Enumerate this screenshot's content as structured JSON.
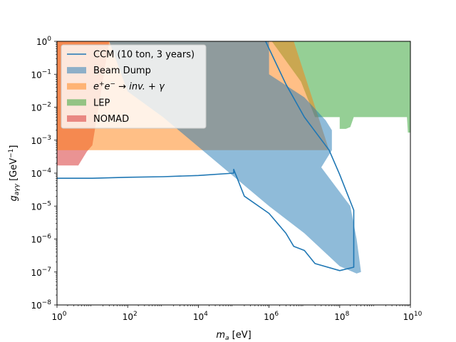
{
  "chart_data": {
    "type": "area",
    "xlabel": "m_a [eV]",
    "ylabel": "g_aγγ [GeV⁻¹]",
    "xscale": "log",
    "yscale": "log",
    "xlim": [
      1,
      10000000000
    ],
    "ylim": [
      1e-08,
      1
    ],
    "x_ticks": [
      {
        "value": 1,
        "base": "10",
        "exp": "0"
      },
      {
        "value": 100,
        "base": "10",
        "exp": "2"
      },
      {
        "value": 10000,
        "base": "10",
        "exp": "4"
      },
      {
        "value": 1000000,
        "base": "10",
        "exp": "6"
      },
      {
        "value": 100000000,
        "base": "10",
        "exp": "8"
      },
      {
        "value": 10000000000,
        "base": "10",
        "exp": "10"
      }
    ],
    "y_ticks": [
      {
        "value": 1e-08,
        "base": "10",
        "exp": "−8"
      },
      {
        "value": 1e-07,
        "base": "10",
        "exp": "−7"
      },
      {
        "value": 1e-06,
        "base": "10",
        "exp": "−6"
      },
      {
        "value": 1e-05,
        "base": "10",
        "exp": "−5"
      },
      {
        "value": 0.0001,
        "base": "10",
        "exp": "−4"
      },
      {
        "value": 0.001,
        "base": "10",
        "exp": "−3"
      },
      {
        "value": 0.01,
        "base": "10",
        "exp": "−2"
      },
      {
        "value": 0.1,
        "base": "10",
        "exp": "−1"
      },
      {
        "value": 1,
        "base": "10",
        "exp": "0"
      }
    ],
    "legend_position": "top-left",
    "series": [
      {
        "name": "LEP",
        "style": "fill",
        "color": "#2ca02c",
        "opacity": 0.5,
        "points": [
          [
            1200000,
            1
          ],
          [
            10000000000,
            1
          ],
          [
            10000000000,
            0.0017
          ],
          [
            8500000000,
            0.0017
          ],
          [
            8000000000,
            0.005
          ],
          [
            250000000,
            0.005
          ],
          [
            200000000,
            0.0025
          ],
          [
            150000000,
            0.0022
          ],
          [
            100000000,
            0.0022
          ],
          [
            100000000,
            0.005
          ],
          [
            20000000,
            0.005
          ],
          [
            8000000,
            0.06
          ],
          [
            1200000,
            1
          ]
        ]
      },
      {
        "name": "NOMAD",
        "style": "fill",
        "color": "#d62728",
        "opacity": 0.5,
        "points": [
          [
            1,
            1
          ],
          [
            30,
            1
          ],
          [
            15,
            0.01
          ],
          [
            10,
            0.0007
          ],
          [
            7,
            0.00045
          ],
          [
            4,
            0.00017
          ],
          [
            1,
            0.00017
          ]
        ]
      },
      {
        "name": "e⁺e⁻ → inv. + γ",
        "style": "fill",
        "color": "#ff7f0e",
        "opacity": 0.5,
        "points": [
          [
            1,
            1
          ],
          [
            5000000,
            1
          ],
          [
            50000000,
            0.0005
          ],
          [
            1,
            0.0005
          ]
        ]
      },
      {
        "name": "Beam Dump",
        "style": "fill",
        "color": "#1f77b4",
        "opacity": 0.5,
        "points": [
          [
            30,
            1
          ],
          [
            1000000,
            1
          ],
          [
            1000000,
            0.1
          ],
          [
            10000000,
            0.02
          ],
          [
            40000000,
            0.004
          ],
          [
            60000000,
            0.002
          ],
          [
            60000000,
            0.0005
          ],
          [
            30000000,
            0.00015
          ],
          [
            200000000,
            1e-05
          ],
          [
            300000000,
            1e-06
          ],
          [
            350000000,
            3e-07
          ],
          [
            400000000,
            1e-07
          ],
          [
            300000000,
            9e-08
          ],
          [
            100000000,
            1.5e-07
          ],
          [
            10000000,
            1.5e-06
          ],
          [
            1000000,
            1e-05
          ],
          [
            1000,
            0.005
          ],
          [
            100,
            0.03
          ],
          [
            30,
            1
          ]
        ]
      },
      {
        "name": "CCM (10 ton, 3 years)",
        "style": "line",
        "color": "#1f77b4",
        "points": [
          [
            1,
            7e-05
          ],
          [
            10,
            7e-05
          ],
          [
            100,
            7.5e-05
          ],
          [
            1000,
            7.8e-05
          ],
          [
            10000,
            8.5e-05
          ],
          [
            100000,
            0.0001
          ],
          [
            100000,
            0.00013
          ],
          [
            200000,
            2e-05
          ],
          [
            1000000,
            6e-06
          ],
          [
            3000000,
            1.5e-06
          ],
          [
            5000000,
            6e-07
          ],
          [
            10000000,
            4.5e-07
          ],
          [
            20000000,
            1.8e-07
          ],
          [
            100000000,
            1.1e-07
          ],
          [
            250000000,
            1.4e-07
          ],
          [
            250000000,
            7.5e-06
          ],
          [
            100000000,
            9e-05
          ],
          [
            50000000,
            0.0005
          ],
          [
            10000000,
            0.005
          ],
          [
            3000000,
            0.05
          ],
          [
            800000,
            1
          ]
        ]
      }
    ],
    "legend_order": [
      "CCM (10 ton, 3 years)",
      "Beam Dump",
      "e⁺e⁻ → inv. + γ",
      "LEP",
      "NOMAD"
    ]
  }
}
